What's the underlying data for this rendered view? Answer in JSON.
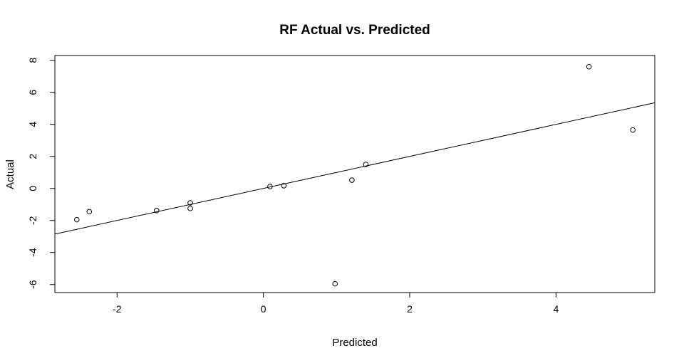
{
  "chart_data": {
    "type": "scatter",
    "title": "RF Actual vs. Predicted",
    "xlabel": "Predicted",
    "ylabel": "Actual",
    "xlim": [
      -2.85,
      5.35
    ],
    "ylim": [
      -6.5,
      8.3
    ],
    "x_ticks": [
      -2,
      0,
      2,
      4
    ],
    "y_ticks": [
      -6,
      -4,
      -2,
      0,
      2,
      4,
      6,
      8
    ],
    "grid": false,
    "legend": "none",
    "points": [
      {
        "x": -2.55,
        "y": -1.95
      },
      {
        "x": -2.38,
        "y": -1.45
      },
      {
        "x": -1.46,
        "y": -1.38
      },
      {
        "x": -1.0,
        "y": -0.9
      },
      {
        "x": -1.0,
        "y": -1.25
      },
      {
        "x": 0.09,
        "y": 0.12
      },
      {
        "x": 0.28,
        "y": 0.17
      },
      {
        "x": 0.98,
        "y": -5.95
      },
      {
        "x": 1.21,
        "y": 0.52
      },
      {
        "x": 1.4,
        "y": 1.5
      },
      {
        "x": 4.45,
        "y": 7.6
      },
      {
        "x": 5.05,
        "y": 3.65
      }
    ],
    "reference_line": {
      "slope": 1,
      "intercept": 0
    },
    "colors": {
      "points": "#000000",
      "line": "#000000",
      "frame": "#000000"
    }
  }
}
